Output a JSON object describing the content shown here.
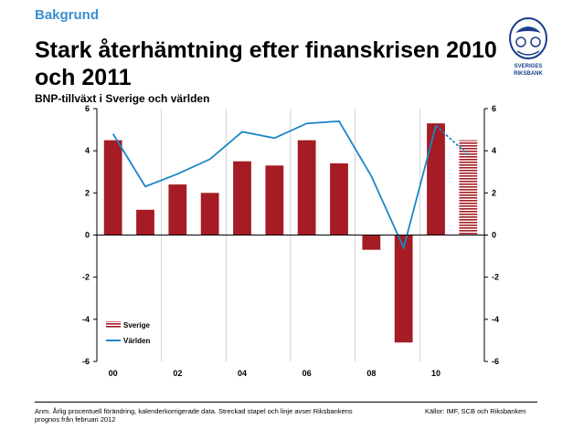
{
  "header": {
    "label": "Bakgrund",
    "title": "Stark återhämtning efter finanskrisen 2010 och 2011",
    "subtitle": "BNP-tillväxt i Sverige och världen"
  },
  "logo": {
    "line1": "SVERIGES",
    "line2": "RIKSBANK"
  },
  "footer": {
    "note": "Anm. Årlig procentuell förändring, kalenderkorrigerade data. Streckad stapel och linje avser Riksbankens prognos från februari 2012",
    "source": "Källor: IMF, SCB och Riksbanken"
  },
  "colors": {
    "sverige": "#a51c24",
    "varlden": "#1a86c8",
    "axis": "#000000"
  },
  "chart_data": {
    "type": "bar",
    "title": "BNP-tillväxt i Sverige och världen",
    "x": [
      2000,
      2001,
      2002,
      2003,
      2004,
      2005,
      2006,
      2007,
      2008,
      2009,
      2010,
      2011
    ],
    "x_tick_labels": [
      "00",
      "02",
      "04",
      "06",
      "08",
      "10"
    ],
    "y_ticks": [
      "6",
      "4",
      "2",
      "0",
      "-2",
      "-4",
      "-6"
    ],
    "ylim": [
      -6,
      6
    ],
    "grid": "vertical",
    "legend_position": "bottom-left",
    "forecast_from": 2011,
    "series": [
      {
        "name": "Sverige",
        "type": "bar",
        "values": [
          4.5,
          1.2,
          2.4,
          2.0,
          3.5,
          3.3,
          4.5,
          3.4,
          -0.7,
          -5.1,
          5.3,
          4.5
        ]
      },
      {
        "name": "Världen",
        "type": "line",
        "values": [
          4.8,
          2.3,
          2.9,
          3.6,
          4.9,
          4.6,
          5.3,
          5.4,
          2.8,
          -0.6,
          5.2,
          3.8
        ]
      }
    ]
  }
}
